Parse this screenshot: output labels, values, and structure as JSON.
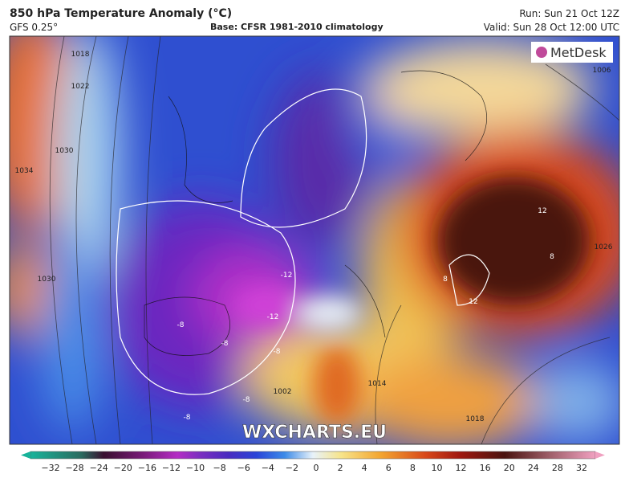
{
  "header": {
    "title": "850 hPa Temperature Anomaly (°C)",
    "model": "GFS 0.25°",
    "base": "Base: CFSR 1981-2010 climatology",
    "run": "Run: Sun 21 Oct 12Z",
    "valid": "Valid: Sun 28 Oct 12:00 UTC"
  },
  "map": {
    "logo": "MetDesk",
    "watermark": "WXCHARTS.EU",
    "contour_labels": [
      "1018",
      "1022",
      "1030",
      "1034",
      "1030",
      "-12",
      "-12",
      "-8",
      "-8",
      "-8",
      "-8",
      "-8",
      "12",
      "12",
      "8",
      "8",
      "1002",
      "1014",
      "1018",
      "1006",
      "1026"
    ]
  },
  "colorbar": {
    "labels": [
      "−32",
      "−28",
      "−24",
      "−20",
      "−16",
      "−12",
      "−10",
      "−8",
      "−6",
      "−4",
      "−2",
      "0",
      "2",
      "4",
      "6",
      "8",
      "10",
      "12",
      "16",
      "20",
      "24",
      "28",
      "32"
    ]
  }
}
